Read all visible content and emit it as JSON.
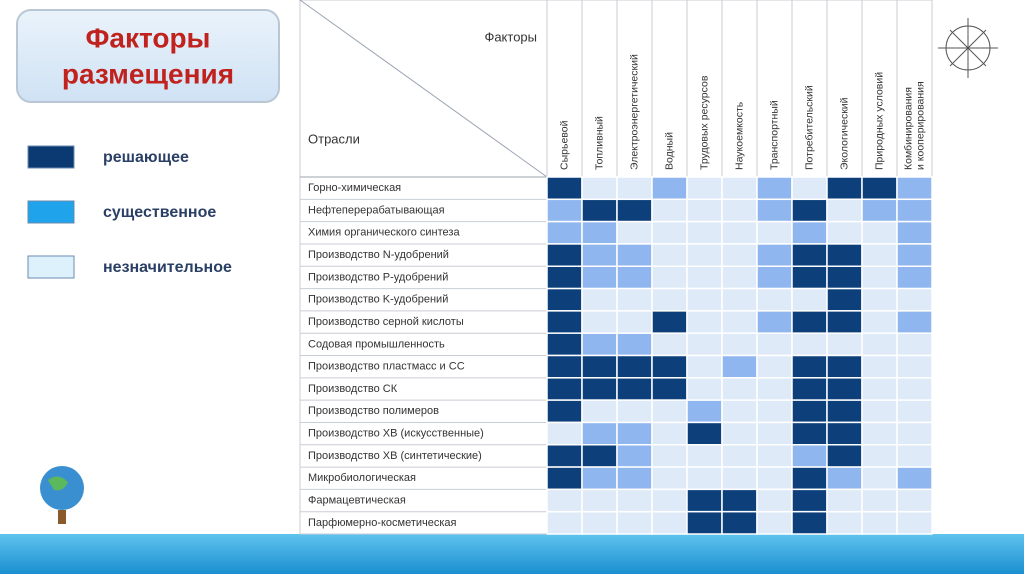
{
  "header": {
    "title": [
      "Факторы",
      "размещения"
    ]
  },
  "legend": [
    {
      "label": "решающее",
      "color": "#0b3a73"
    },
    {
      "label": "существенное",
      "color": "#1fa3ea"
    },
    {
      "label": "незначительное",
      "color": "#dcf1fb"
    }
  ],
  "table": {
    "factors_label": "Факторы",
    "industries_label": "Отрасли",
    "level_colors": [
      "#0d3f7a",
      "#8fb6ef",
      "#dfeaf8"
    ],
    "columns": [
      [
        "Сырьевой"
      ],
      [
        "Топливный"
      ],
      [
        "Электроэнергетический"
      ],
      [
        "Водный"
      ],
      [
        "Трудовых ресурсов"
      ],
      [
        "Наукоемкость"
      ],
      [
        "Транспортный"
      ],
      [
        "Потребительский"
      ],
      [
        "Экологический"
      ],
      [
        "Природных условий"
      ],
      [
        "Комбинирования",
        "и кооперирования"
      ]
    ],
    "rows": [
      {
        "name": "Горно-химическая",
        "levels": [
          0,
          2,
          2,
          1,
          2,
          2,
          1,
          2,
          0,
          0,
          1
        ]
      },
      {
        "name": "Нефтеперерабатывающая",
        "levels": [
          1,
          0,
          0,
          2,
          2,
          2,
          1,
          0,
          2,
          1,
          1
        ]
      },
      {
        "name": "Химия органического синтеза",
        "levels": [
          1,
          1,
          2,
          2,
          2,
          2,
          2,
          1,
          2,
          2,
          1
        ]
      },
      {
        "name": "Производство N-удобрений",
        "levels": [
          0,
          1,
          1,
          2,
          2,
          2,
          1,
          0,
          0,
          2,
          1
        ]
      },
      {
        "name": "Производство P-удобрений",
        "levels": [
          0,
          1,
          1,
          2,
          2,
          2,
          1,
          0,
          0,
          2,
          1
        ]
      },
      {
        "name": "Производство K-удобрений",
        "levels": [
          0,
          2,
          2,
          2,
          2,
          2,
          2,
          2,
          0,
          2,
          2
        ]
      },
      {
        "name": "Производство серной кислоты",
        "levels": [
          0,
          2,
          2,
          0,
          2,
          2,
          1,
          0,
          0,
          2,
          1
        ]
      },
      {
        "name": "Содовая промышленность",
        "levels": [
          0,
          1,
          1,
          2,
          2,
          2,
          2,
          2,
          2,
          2,
          2
        ]
      },
      {
        "name": "Производство пластмасс и СС",
        "levels": [
          0,
          0,
          0,
          0,
          2,
          1,
          2,
          0,
          0,
          2,
          2
        ]
      },
      {
        "name": "Производство СК",
        "levels": [
          0,
          0,
          0,
          0,
          2,
          2,
          2,
          0,
          0,
          2,
          2
        ]
      },
      {
        "name": "Производство полимеров",
        "levels": [
          0,
          2,
          2,
          2,
          1,
          2,
          2,
          0,
          0,
          2,
          2
        ]
      },
      {
        "name": "Производство ХВ (искусственные)",
        "levels": [
          2,
          1,
          1,
          2,
          0,
          2,
          2,
          0,
          0,
          2,
          2
        ]
      },
      {
        "name": "Производство ХВ (синтетические)",
        "levels": [
          0,
          0,
          1,
          2,
          2,
          2,
          2,
          1,
          0,
          2,
          2
        ]
      },
      {
        "name": "Микробиологическая",
        "levels": [
          0,
          1,
          1,
          2,
          2,
          2,
          2,
          0,
          1,
          2,
          1
        ]
      },
      {
        "name": "Фармацевтическая",
        "levels": [
          2,
          2,
          2,
          2,
          0,
          0,
          2,
          0,
          2,
          2,
          2
        ]
      },
      {
        "name": "Парфюмерно-косметическая",
        "levels": [
          2,
          2,
          2,
          2,
          0,
          0,
          2,
          0,
          2,
          2,
          2
        ]
      }
    ]
  }
}
